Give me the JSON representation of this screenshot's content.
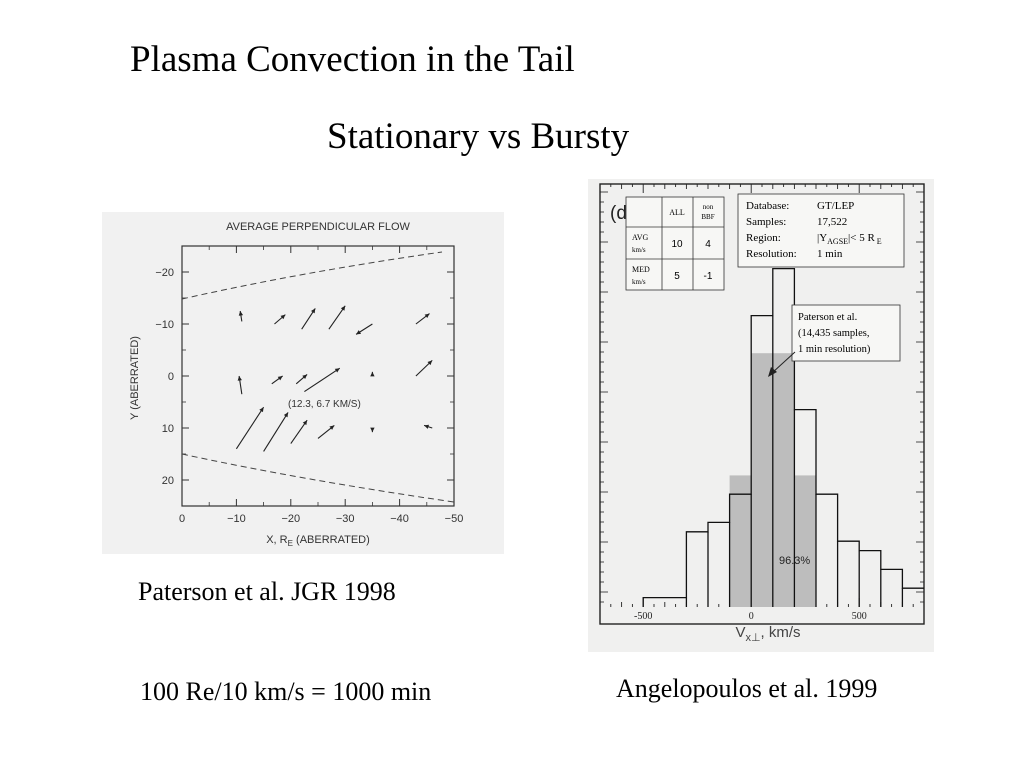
{
  "slide": {
    "title": "Plasma Convection in the Tail",
    "subtitle": "Stationary vs Bursty",
    "caption_left": "Paterson et al. JGR 1998",
    "caption_right": "Angelopoulos et al. 1999",
    "note": "100 Re/10 km/s = 1000 min"
  },
  "chart_data": [
    {
      "type": "scatter",
      "title": "AVERAGE PERPENDICULAR FLOW",
      "xlabel": "X, R_E (ABERRATED)",
      "ylabel": "Y (ABERRATED)",
      "xlim": [
        0,
        -50
      ],
      "ylim": [
        -25,
        25
      ],
      "y_inverted": true,
      "x_ticks": [
        "0",
        "−10",
        "−20",
        "−30",
        "−40",
        "−50"
      ],
      "y_ticks": [
        "−20",
        "−10",
        "0",
        "10",
        "20"
      ],
      "annotation": "(12.3, 6.7 KM/S)",
      "boundary_description": "dashed magnetopause boundaries above and below",
      "arrows": [
        {
          "x": -11,
          "y": -10.5,
          "dx": 0.3,
          "dy": -2
        },
        {
          "x": -17,
          "y": -10,
          "dx": -2,
          "dy": -1.8
        },
        {
          "x": -22,
          "y": -9,
          "dx": -2.5,
          "dy": -4
        },
        {
          "x": -27,
          "y": -9,
          "dx": -3,
          "dy": -4.5
        },
        {
          "x": -35,
          "y": -10,
          "dx": 3,
          "dy": 2
        },
        {
          "x": -43,
          "y": -10,
          "dx": -2.5,
          "dy": -2
        },
        {
          "x": -11,
          "y": 3.5,
          "dx": 0.5,
          "dy": -3.5
        },
        {
          "x": -16.5,
          "y": 1.5,
          "dx": -2,
          "dy": -1.5
        },
        {
          "x": -21,
          "y": 1.5,
          "dx": -2,
          "dy": -1.8
        },
        {
          "x": -22.5,
          "y": 3,
          "dx": -6.5,
          "dy": -4.5
        },
        {
          "x": -35,
          "y": 0,
          "dx": 0,
          "dy": -0.8
        },
        {
          "x": -43,
          "y": 0,
          "dx": -3,
          "dy": -3
        },
        {
          "x": -10,
          "y": 14,
          "dx": -5,
          "dy": -8
        },
        {
          "x": -15,
          "y": 14.5,
          "dx": -4.5,
          "dy": -7.5
        },
        {
          "x": -20,
          "y": 13,
          "dx": -3,
          "dy": -4.5
        },
        {
          "x": -25,
          "y": 12,
          "dx": -3,
          "dy": -2.5
        },
        {
          "x": -35,
          "y": 10,
          "dx": 0,
          "dy": 0.8
        },
        {
          "x": -46,
          "y": 10,
          "dx": 1.5,
          "dy": -0.5
        }
      ]
    },
    {
      "type": "bar",
      "panel_label": "(d)",
      "xlabel": "V_x⊥, km/s",
      "x_ticks": [
        "-500",
        "0",
        "500"
      ],
      "xlim": [
        -700,
        800
      ],
      "bin_edges": [
        -500,
        -300,
        -200,
        -100,
        0,
        100,
        200,
        300,
        400,
        500,
        600,
        700,
        800
      ],
      "series": [
        {
          "name": "ALL",
          "values": [
            1,
            8,
            9,
            12,
            31,
            36,
            21,
            12,
            7,
            6,
            4,
            2
          ]
        },
        {
          "name": "Paterson et al. (14,435 samples, 1 min resolution)",
          "values": [
            0,
            0,
            0,
            14,
            27,
            27,
            14,
            0,
            0,
            0,
            0,
            0
          ]
        }
      ],
      "stat_table": {
        "headers": [
          "",
          "ALL",
          "non BBF"
        ],
        "rows": [
          {
            "label": "AVG km/s",
            "values": [
              "10",
              "4"
            ]
          },
          {
            "label": "MED km/s",
            "values": [
              "5",
              "-1"
            ]
          }
        ]
      },
      "info_box": [
        {
          "key": "Database:",
          "value": "GT/LEP"
        },
        {
          "key": "Samples:",
          "value": "17,522"
        },
        {
          "key": "Region:",
          "value": "|Y_AGSE|< 5 R_E"
        },
        {
          "key": "Resolution:",
          "value": "1 min"
        }
      ],
      "callout": [
        "Paterson et al.",
        "(14,435 samples,",
        "1 min resolution)"
      ],
      "percent_label": "96.3%"
    }
  ]
}
